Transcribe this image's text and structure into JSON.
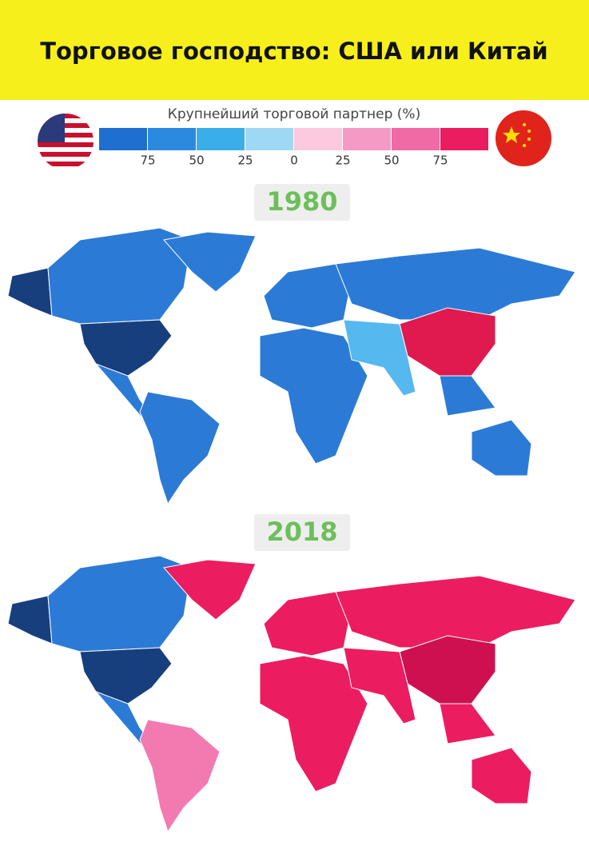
{
  "header": {
    "title": "Торговое господство: США или Китай"
  },
  "legend": {
    "label": "Крупнейший торговой партнер (%)",
    "ticks": [
      75,
      50,
      25,
      0,
      25,
      50,
      75
    ],
    "colors": [
      "#1f6fd0",
      "#2b8ae0",
      "#3aaee8",
      "#9fd8f5",
      "#fcc9df",
      "#f59ac4",
      "#f06aa6",
      "#ec1c60"
    ]
  },
  "maps": [
    {
      "year": "1980"
    },
    {
      "year": "2018"
    }
  ]
}
